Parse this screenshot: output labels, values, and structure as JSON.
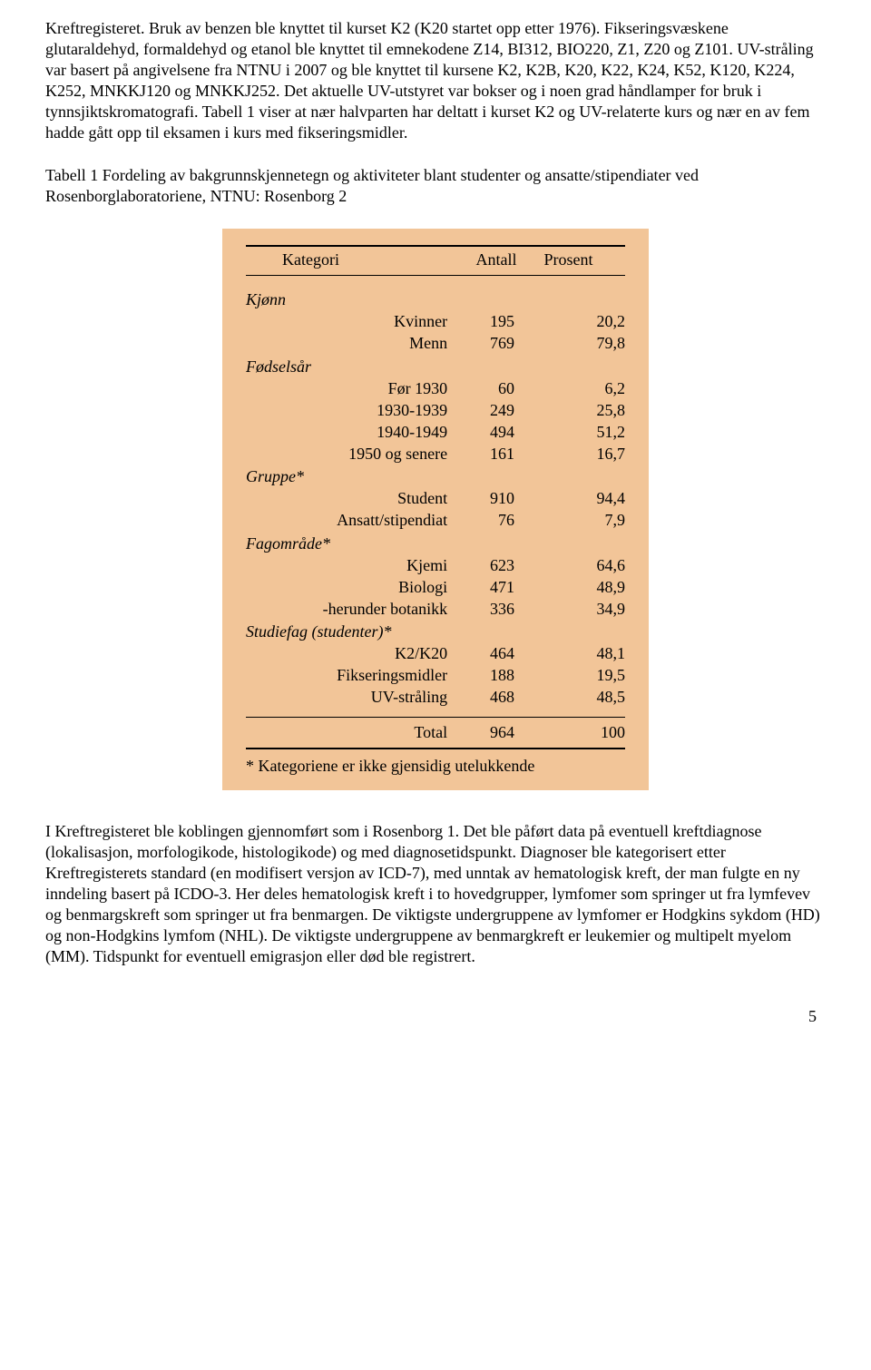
{
  "paragraphs": {
    "p1": "Kreftregisteret. Bruk av benzen ble knyttet til kurset K2 (K20 startet opp etter 1976). Fikseringsvæskene glutaraldehyd, formaldehyd og etanol ble knyttet til emnekodene Z14, BI312, BIO220, Z1, Z20 og Z101. UV-stråling var basert på angivelsene fra NTNU i 2007 og ble knyttet til kursene K2, K2B, K20, K22, K24, K52, K120, K224, K252, MNKKJ120 og MNKKJ252. Det aktuelle UV-utstyret var bokser og i noen grad håndlamper for bruk i tynnsjiktskromatografi. Tabell 1 viser at nær halvparten har deltatt i kurset K2 og UV-relaterte kurs og nær en av fem hadde gått opp til eksamen i kurs med fikseringsmidler.",
    "p2": "Tabell 1 Fordeling av bakgrunnskjennetegn og aktiviteter blant studenter og ansatte/stipendiater ved Rosenborglaboratoriene, NTNU: Rosenborg 2",
    "p3": "I Kreftregisteret ble koblingen gjennomført som i Rosenborg 1. Det ble påført data på eventuell kreftdiagnose (lokalisasjon, morfologikode, histologikode) og med diagnosetidspunkt. Diagnoser ble kategorisert etter Kreftregisterets standard (en modifisert versjon av ICD-7), med unntak av hematologisk kreft, der man fulgte en ny inndeling basert på ICDO-3. Her deles hematologisk kreft i to hovedgrupper, lymfomer som springer ut fra lymfevev og benmargskreft som springer ut fra benmargen. De viktigste undergruppene av lymfomer er Hodgkins sykdom (HD) og non-Hodgkins lymfom (NHL). De viktigste undergruppene av benmargkreft er leukemier og multipelt myelom (MM). Tidspunkt for eventuell emigrasjon eller død ble registrert."
  },
  "table": {
    "bg": "#f2c598",
    "headers": {
      "cat": "Kategori",
      "n": "Antall",
      "p": "Prosent"
    },
    "sections": [
      {
        "label": "Kjønn",
        "rows": [
          {
            "cat": "Kvinner",
            "n": "195",
            "p": "20,2"
          },
          {
            "cat": "Menn",
            "n": "769",
            "p": "79,8"
          }
        ]
      },
      {
        "label": "Fødselsår",
        "rows": [
          {
            "cat": "Før 1930",
            "n": "60",
            "p": "6,2"
          },
          {
            "cat": "1930-1939",
            "n": "249",
            "p": "25,8"
          },
          {
            "cat": "1940-1949",
            "n": "494",
            "p": "51,2"
          },
          {
            "cat": "1950 og senere",
            "n": "161",
            "p": "16,7"
          }
        ]
      },
      {
        "label": "Gruppe*",
        "rows": [
          {
            "cat": "Student",
            "n": "910",
            "p": "94,4"
          },
          {
            "cat": "Ansatt/stipendiat",
            "n": "76",
            "p": "7,9"
          }
        ]
      },
      {
        "label": "Fagområde*",
        "rows": [
          {
            "cat": "Kjemi",
            "n": "623",
            "p": "64,6"
          },
          {
            "cat": "Biologi",
            "n": "471",
            "p": "48,9"
          },
          {
            "cat": "-herunder botanikk",
            "n": "336",
            "p": "34,9"
          }
        ]
      },
      {
        "label": "Studiefag (studenter)*",
        "rows": [
          {
            "cat": "K2/K20",
            "n": "464",
            "p": "48,1"
          },
          {
            "cat": "Fikseringsmidler",
            "n": "188",
            "p": "19,5"
          },
          {
            "cat": "UV-stråling",
            "n": "468",
            "p": "48,5"
          }
        ]
      }
    ],
    "total": {
      "label": "Total",
      "n": "964",
      "p": "100"
    },
    "footnote": "* Kategoriene er ikke gjensidig utelukkende"
  },
  "page_number": "5"
}
